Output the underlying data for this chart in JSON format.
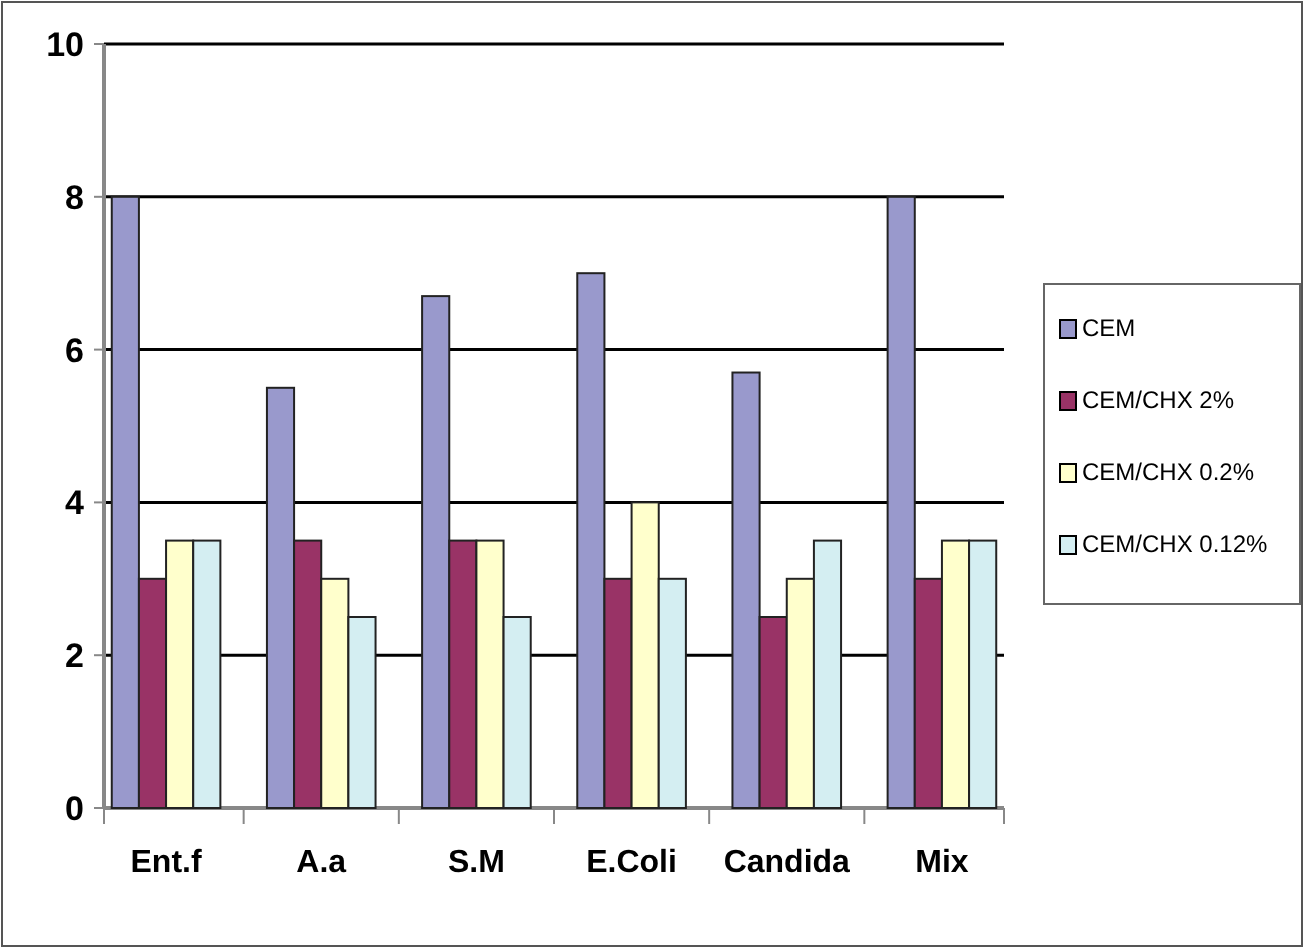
{
  "chart_data": {
    "type": "bar",
    "categories": [
      "Ent.f",
      "A.a",
      "S.M",
      "E.Coli",
      "Candida",
      "Mix"
    ],
    "series": [
      {
        "name": "CEM",
        "color": "#9999cc",
        "values": [
          8,
          5.5,
          6.7,
          7,
          5.7,
          8
        ]
      },
      {
        "name": "CEM/CHX 2%",
        "color": "#993366",
        "values": [
          3,
          3.5,
          3.5,
          3,
          2.5,
          3
        ]
      },
      {
        "name": "CEM/CHX 0.2%",
        "color": "#ffffcc",
        "values": [
          3.5,
          3,
          3.5,
          4,
          3,
          3.5
        ]
      },
      {
        "name": "CEM/CHX 0.12%",
        "color": "#d4eef2",
        "values": [
          3.5,
          2.5,
          2.5,
          3,
          3.5,
          3.5
        ]
      }
    ],
    "ylim": [
      0,
      10
    ],
    "yticks": [
      0,
      2,
      4,
      6,
      8,
      10
    ],
    "grid": "y",
    "legend": "right"
  }
}
